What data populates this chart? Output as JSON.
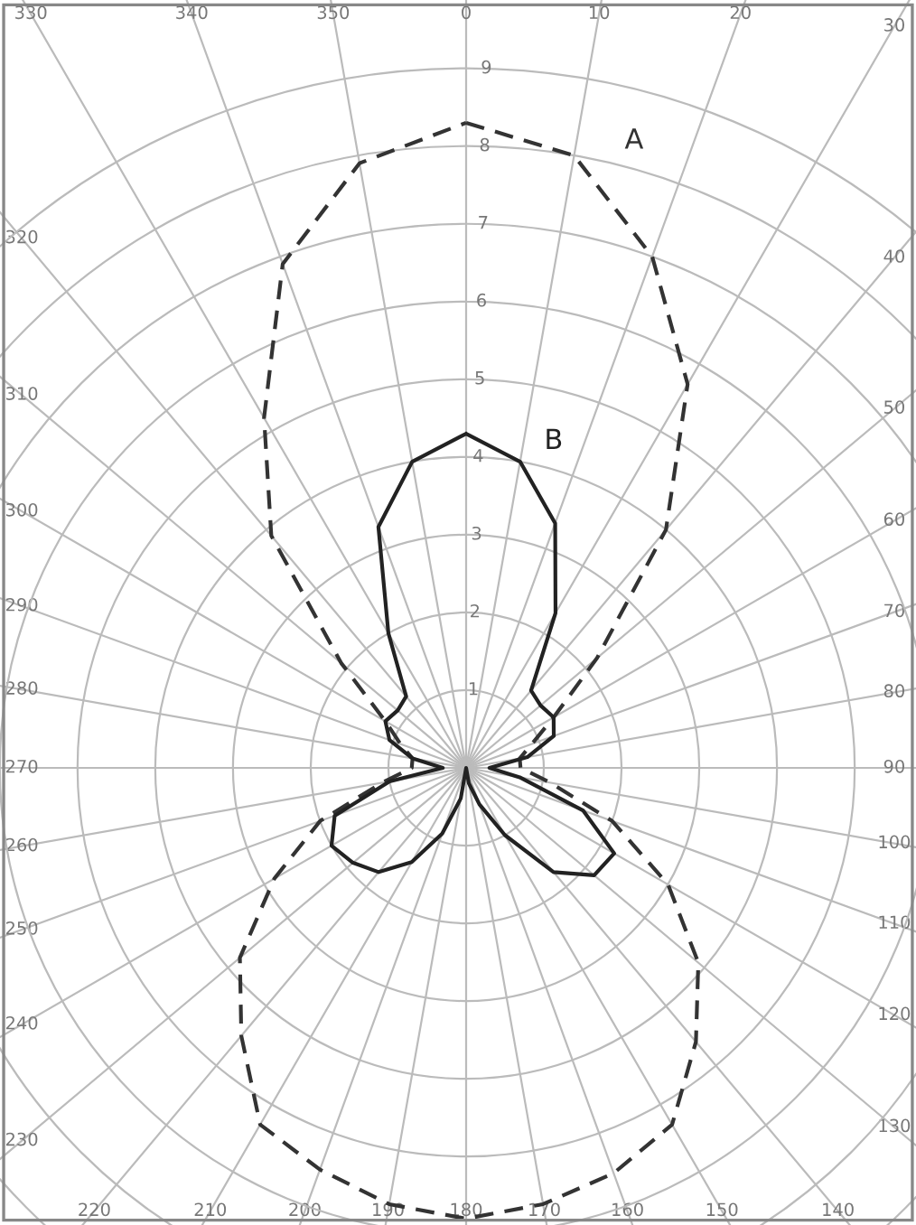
{
  "chart_data": {
    "type": "radar",
    "categories": [
      "0",
      "10",
      "20",
      "30",
      "40",
      "50",
      "60",
      "70",
      "80",
      "90",
      "100",
      "110",
      "120",
      "130",
      "140",
      "150",
      "160",
      "170",
      "180",
      "190",
      "200",
      "210",
      "220",
      "230",
      "240",
      "250",
      "260",
      "270",
      "280",
      "290",
      "300",
      "310",
      "320",
      "330",
      "340",
      "350"
    ],
    "series": [
      {
        "name": "A",
        "color": "#333333",
        "line_style": "dashed",
        "values": [
          8.3,
          8.0,
          7.0,
          5.7,
          4.0,
          2.2,
          1.3,
          0.9,
          0.7,
          0.7,
          1.1,
          2.0,
          3.0,
          3.9,
          4.6,
          5.3,
          5.55,
          5.7,
          5.8,
          5.7,
          5.5,
          5.3,
          4.5,
          3.8,
          2.85,
          2.0,
          1.1,
          0.7,
          0.7,
          0.9,
          1.2,
          2.1,
          3.9,
          5.2,
          6.9,
          7.9
        ]
      },
      {
        "name": "B",
        "color": "#222222",
        "line_style": "solid",
        "values": [
          4.3,
          4.0,
          3.35,
          2.3,
          1.3,
          1.25,
          1.3,
          1.2,
          0.8,
          0.3,
          0.7,
          1.6,
          2.2,
          2.15,
          1.75,
          1.0,
          0.5,
          0.2,
          0,
          0.4,
          0.9,
          1.4,
          1.75,
          1.9,
          2.0,
          1.8,
          1.0,
          0.3,
          0.7,
          1.05,
          1.2,
          1.15,
          1.2,
          2.0,
          3.3,
          4.0
        ]
      }
    ],
    "ylim": [
      0,
      11.6
    ],
    "yticks": [
      1,
      2,
      3,
      4,
      5,
      6,
      7,
      8,
      9
    ],
    "grid": true,
    "marker": "none"
  }
}
